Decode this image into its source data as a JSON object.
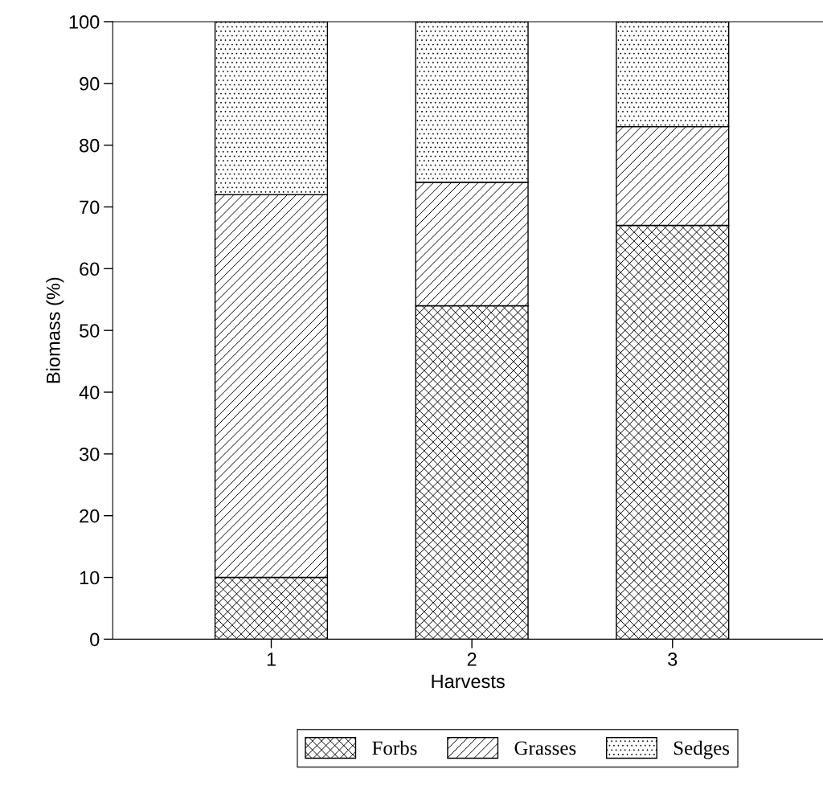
{
  "chart_data": {
    "type": "bar",
    "stacked": true,
    "xlabel": "Harvests",
    "ylabel": "Biomass (%)",
    "categories": [
      "1",
      "2",
      "3"
    ],
    "series": [
      {
        "name": "Forbs",
        "color": "#000000",
        "values": [
          10,
          54,
          67
        ]
      },
      {
        "name": "Grasses",
        "color": "#000000",
        "values": [
          62,
          20,
          16
        ]
      },
      {
        "name": "Sedges",
        "color": "#000000",
        "values": [
          28,
          26,
          17
        ]
      }
    ],
    "ylim": [
      0,
      100
    ],
    "yticks": [
      0,
      10,
      20,
      30,
      40,
      50,
      60,
      70,
      80,
      90,
      100
    ],
    "legend": "bottom",
    "grid": false
  }
}
